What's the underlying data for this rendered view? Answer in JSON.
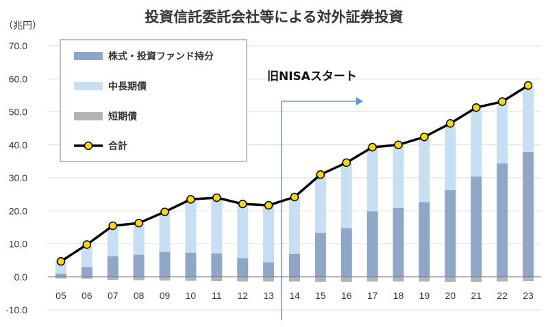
{
  "chart_data": {
    "type": "bar",
    "stacked": true,
    "title": "投資信託委託会社等による対外証券投資",
    "ylabel": "（兆円）",
    "xlabel": "",
    "ylim": [
      -10,
      70
    ],
    "y_ticks": [
      "70.0",
      "60.0",
      "50.0",
      "40.0",
      "30.0",
      "20.0",
      "10.0",
      "0.0",
      "-10.0"
    ],
    "grid": true,
    "categories": [
      "05",
      "06",
      "07",
      "08",
      "09",
      "10",
      "11",
      "12",
      "13",
      "14",
      "15",
      "16",
      "17",
      "18",
      "19",
      "20",
      "21",
      "22",
      "23"
    ],
    "series": [
      {
        "name": "株式・投資ファンド持分",
        "color": "#8ea7c9",
        "values": [
          1.0,
          3.0,
          6.3,
          6.7,
          7.6,
          7.3,
          7.1,
          5.7,
          4.4,
          7.0,
          13.3,
          14.8,
          19.9,
          20.9,
          22.7,
          26.3,
          30.4,
          34.4,
          37.9
        ]
      },
      {
        "name": "中長期債",
        "color": "#c6dff3",
        "values": [
          3.9,
          6.8,
          9.4,
          9.8,
          12.1,
          16.2,
          16.9,
          16.3,
          17.3,
          17.0,
          17.6,
          19.8,
          19.7,
          19.0,
          19.6,
          20.1,
          20.6,
          18.7,
          19.9
        ]
      },
      {
        "name": "短期債",
        "color": "#b3b3b3",
        "values": [
          -0.5,
          -0.6,
          -0.9,
          -1.0,
          -1.1,
          -1.2,
          -1.3,
          -1.4,
          -1.4,
          -1.4,
          -1.5,
          -1.5,
          -1.4,
          -1.4,
          -1.4,
          -1.5,
          -1.5,
          -1.4,
          -1.3
        ]
      },
      {
        "name": "合計",
        "type": "line",
        "color": "#000000",
        "marker_color": "#ffd700",
        "values": [
          4.7,
          9.8,
          15.5,
          16.3,
          19.7,
          23.5,
          24.0,
          22.1,
          21.7,
          24.2,
          31.0,
          34.6,
          39.3,
          40.0,
          42.4,
          46.5,
          51.3,
          53.1,
          58.0
        ]
      }
    ],
    "legend_position": "top-left",
    "annotation": {
      "label": "旧NISAスタート",
      "category": "14",
      "color": "#5b9bd5"
    }
  }
}
